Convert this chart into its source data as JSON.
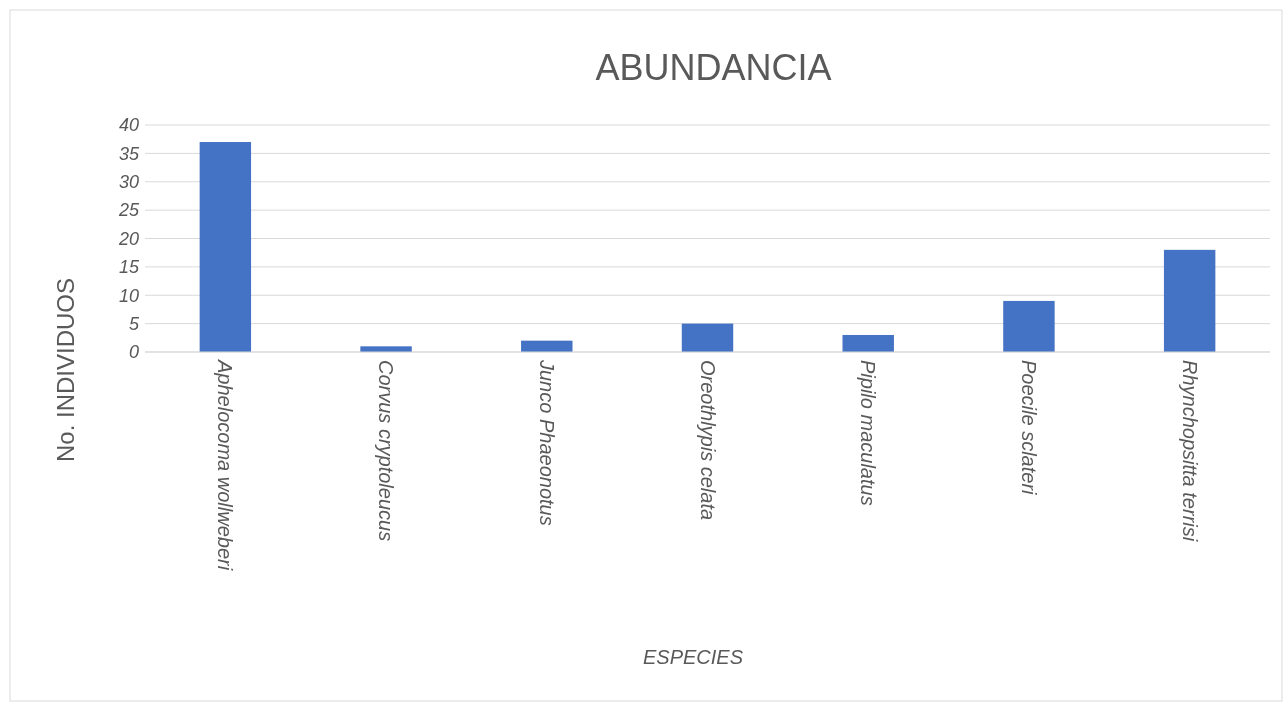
{
  "chart_data": {
    "type": "bar",
    "title": "ABUNDANCIA",
    "xlabel": "ESPECIES",
    "ylabel": "No. INDIVIDUOS",
    "categories": [
      "Aphelocoma wollweberi",
      "Corvus cryptoleucus",
      "Junco Phaeonotus",
      "Oreothlypis celata",
      "Pipilo maculatus",
      "Poecile sclateri",
      "Rhynchopsitta terrisi"
    ],
    "values": [
      37,
      1,
      2,
      5,
      3,
      9,
      18
    ],
    "color": "#4472c4",
    "ylim": [
      0,
      40
    ],
    "yticks": [
      0,
      5,
      10,
      15,
      20,
      25,
      30,
      35,
      40
    ],
    "grid": "y"
  }
}
